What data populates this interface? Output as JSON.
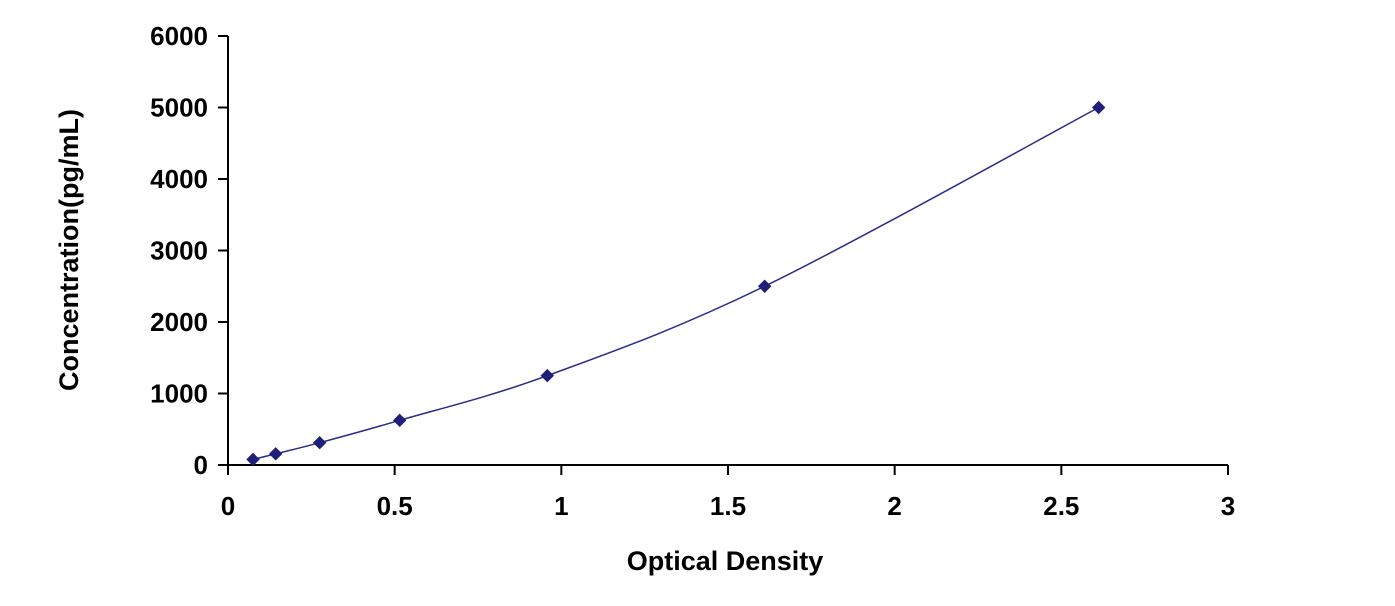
{
  "chart_data": {
    "type": "scatter",
    "title": "",
    "xlabel": "Optical Density",
    "ylabel": "Concentration(pg/mL)",
    "xlim": [
      0,
      3
    ],
    "ylim": [
      0,
      6000
    ],
    "x_ticks": [
      0,
      0.5,
      1,
      1.5,
      2,
      2.5,
      3
    ],
    "x_tick_labels": [
      "0",
      "0.5",
      "1",
      "1.5",
      "2",
      "2.5",
      "3"
    ],
    "y_ticks": [
      0,
      1000,
      2000,
      3000,
      4000,
      5000,
      6000
    ],
    "y_tick_labels": [
      "0",
      "1000",
      "2000",
      "3000",
      "4000",
      "5000",
      "6000"
    ],
    "grid": false,
    "legend": false,
    "trendline": "smooth curve through points",
    "series": [
      {
        "x": [
          0.075,
          0.143,
          0.275,
          0.515,
          0.958,
          1.61,
          2.612
        ],
        "y": [
          78,
          156,
          312,
          625,
          1250,
          2500,
          5000
        ]
      }
    ],
    "colors": {
      "marker": "#1f1f7a",
      "line": "#2b2b8c",
      "axis": "#000000"
    }
  }
}
